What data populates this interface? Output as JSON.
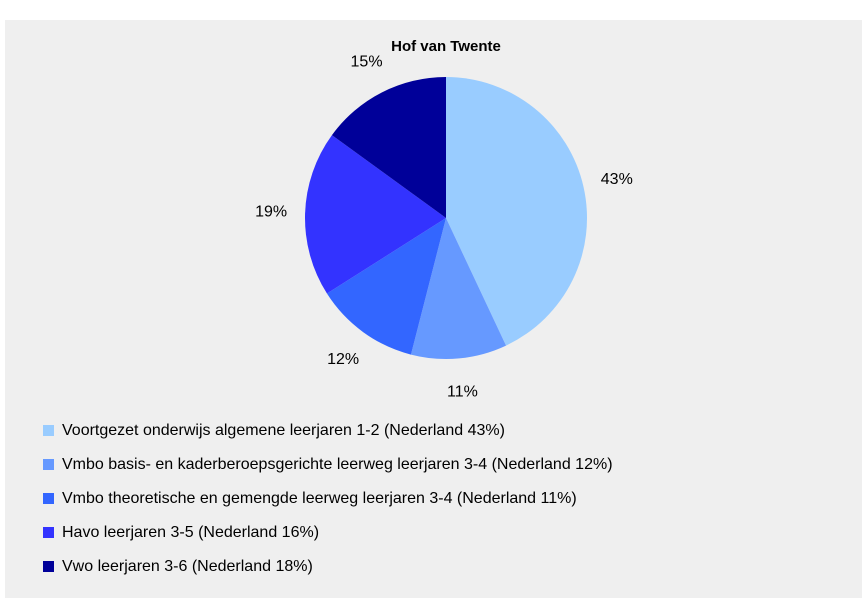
{
  "chart_data": {
    "type": "pie",
    "title": "Hof van Twente",
    "categories": [
      "Voortgezet onderwijs algemene leerjaren 1-2 (Nederland 43%)",
      "Vmbo basis- en kaderberoepsgerichte leerweg leerjaren 3-4 (Nederland 12%)",
      "Vmbo theoretische en gemengde leerweg leerjaren 3-4 (Nederland 11%)",
      "Havo leerjaren 3-5 (Nederland 16%)",
      "Vwo leerjaren 3-6 (Nederland 18%)"
    ],
    "values": [
      43,
      11,
      12,
      19,
      15
    ],
    "value_labels": [
      "43%",
      "11%",
      "12%",
      "19%",
      "15%"
    ],
    "colors": [
      "#99ccff",
      "#6699ff",
      "#3366ff",
      "#3333ff",
      "#000099"
    ],
    "legend": "bottom"
  }
}
